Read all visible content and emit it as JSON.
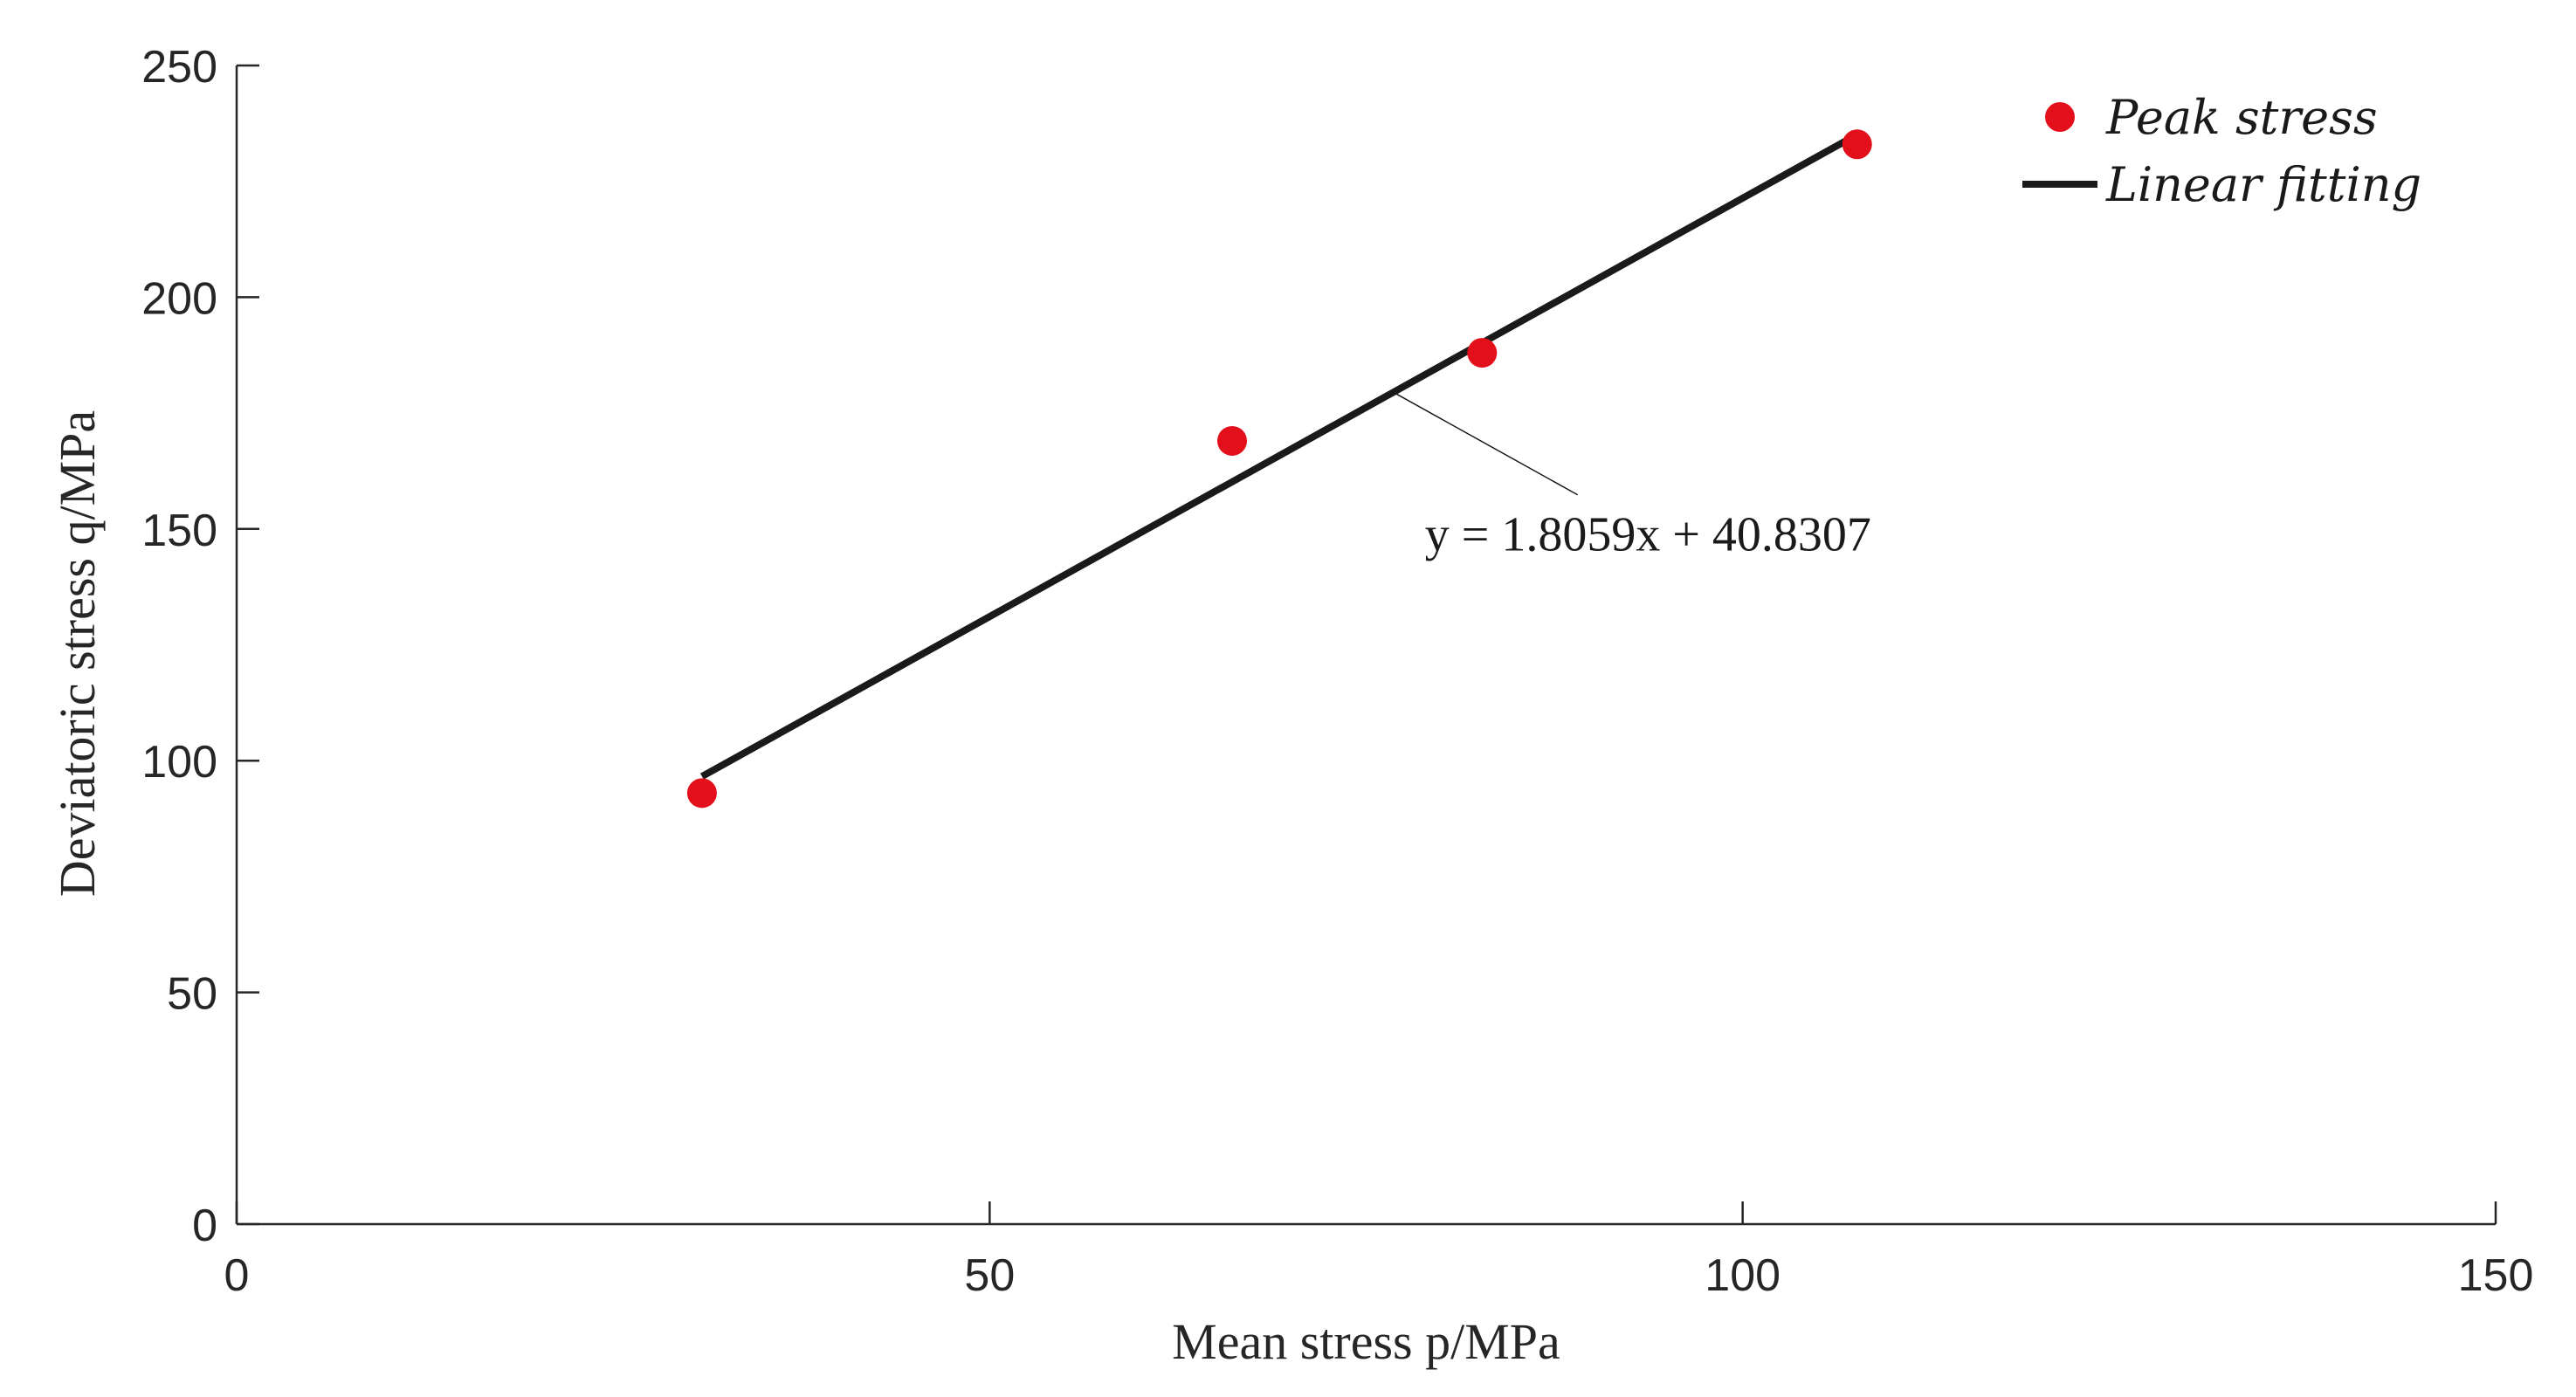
{
  "chart_data": {
    "type": "scatter",
    "title": "",
    "xlabel": "Mean stress p/MPa",
    "ylabel": "Deviatoric stress q/MPa",
    "xlim": [
      0,
      150
    ],
    "ylim": [
      0,
      250
    ],
    "xticks": [
      0,
      50,
      100,
      150
    ],
    "yticks": [
      0,
      50,
      100,
      150,
      200,
      250
    ],
    "grid": false,
    "legend_position": "top-right",
    "series": [
      {
        "name": "Peak stress",
        "kind": "scatter",
        "color": "#e3101c",
        "x": [
          30.9,
          66.1,
          82.7,
          107.6
        ],
        "y": [
          93,
          169,
          188,
          233
        ]
      },
      {
        "name": "Linear fitting",
        "kind": "line",
        "color": "#1a1a1a",
        "x": [
          30.9,
          107.6
        ],
        "y": [
          96.6,
          235.1
        ]
      }
    ],
    "annotations": [
      {
        "text": "y = 1.8059x + 40.8307",
        "points_to": [
          76.8,
          179.5
        ],
        "text_at": [
          78.9,
          145.3
        ]
      }
    ]
  }
}
